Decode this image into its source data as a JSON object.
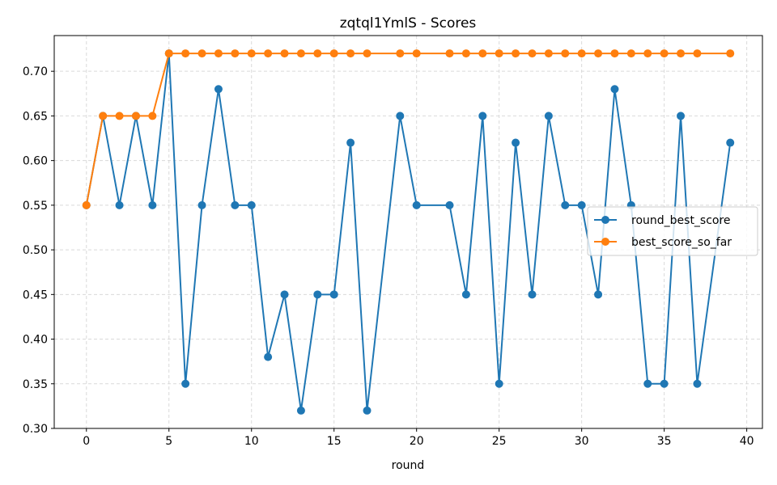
{
  "chart_data": {
    "type": "line",
    "title": "zqtql1YmlS - Scores",
    "xlabel": "round",
    "ylabel": "",
    "xlim": [
      -1.95,
      40.95
    ],
    "ylim": [
      0.3,
      0.74
    ],
    "xticks": [
      0,
      5,
      10,
      15,
      20,
      25,
      30,
      35,
      40
    ],
    "yticks": [
      0.3,
      0.35,
      0.4,
      0.45,
      0.5,
      0.55,
      0.6,
      0.65,
      0.7
    ],
    "grid": true,
    "legend_position": "center-right",
    "series": [
      {
        "name": "round_best_score",
        "color": "#1f77b4",
        "x": [
          0,
          1,
          2,
          3,
          4,
          5,
          6,
          7,
          8,
          9,
          10,
          11,
          12,
          13,
          14,
          15,
          16,
          17,
          19,
          20,
          22,
          23,
          24,
          25,
          26,
          27,
          28,
          29,
          30,
          31,
          32,
          33,
          34,
          35,
          36,
          37,
          39
        ],
        "values": [
          0.55,
          0.65,
          0.55,
          0.65,
          0.55,
          0.72,
          0.35,
          0.55,
          0.68,
          0.55,
          0.55,
          0.38,
          0.45,
          0.32,
          0.45,
          0.45,
          0.62,
          0.32,
          0.65,
          0.55,
          0.55,
          0.45,
          0.65,
          0.35,
          0.62,
          0.45,
          0.65,
          0.55,
          0.55,
          0.45,
          0.68,
          0.55,
          0.35,
          0.35,
          0.65,
          0.35,
          0.62
        ]
      },
      {
        "name": "best_score_so_far",
        "color": "#ff7f0e",
        "x": [
          0,
          1,
          2,
          3,
          4,
          5,
          6,
          7,
          8,
          9,
          10,
          11,
          12,
          13,
          14,
          15,
          16,
          17,
          19,
          20,
          22,
          23,
          24,
          25,
          26,
          27,
          28,
          29,
          30,
          31,
          32,
          33,
          34,
          35,
          36,
          37,
          39
        ],
        "values": [
          0.55,
          0.65,
          0.65,
          0.65,
          0.65,
          0.72,
          0.72,
          0.72,
          0.72,
          0.72,
          0.72,
          0.72,
          0.72,
          0.72,
          0.72,
          0.72,
          0.72,
          0.72,
          0.72,
          0.72,
          0.72,
          0.72,
          0.72,
          0.72,
          0.72,
          0.72,
          0.72,
          0.72,
          0.72,
          0.72,
          0.72,
          0.72,
          0.72,
          0.72,
          0.72,
          0.72,
          0.72
        ]
      }
    ]
  }
}
